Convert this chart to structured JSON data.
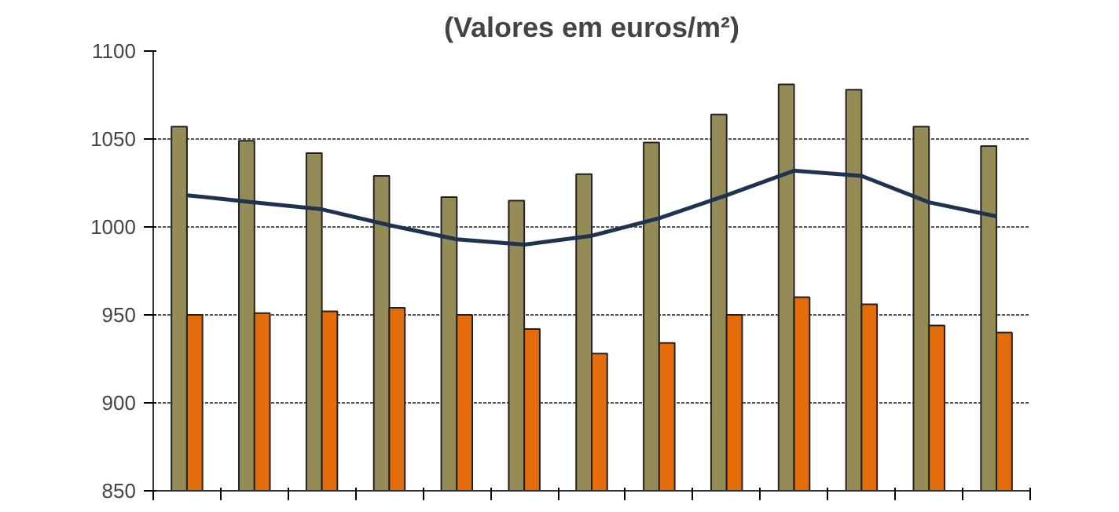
{
  "chart_data": {
    "type": "bar",
    "title": "(Valores em euros/m²)",
    "categories": [
      null,
      null,
      null,
      null,
      null,
      null,
      null,
      null,
      null,
      null,
      null,
      null,
      null
    ],
    "series": [
      {
        "color": "#958b56",
        "values": [
          1057,
          1049,
          1042,
          1029,
          1017,
          1015,
          1030,
          1048,
          1064,
          1081,
          1078,
          1057,
          1046
        ]
      },
      {
        "color": "#e46c0a",
        "values": [
          950,
          951,
          952,
          954,
          950,
          942,
          928,
          934,
          950,
          960,
          956,
          944,
          940
        ]
      },
      {
        "type": "line",
        "color": "#1f3350",
        "values": [
          1018,
          1014,
          1010,
          1001,
          993,
          990,
          995,
          1005,
          1018,
          1032,
          1029,
          1014,
          1006
        ]
      }
    ],
    "ylim": [
      850,
      1100
    ],
    "yticks": [
      850,
      900,
      950,
      1000,
      1050,
      1100
    ],
    "grid": "y"
  }
}
